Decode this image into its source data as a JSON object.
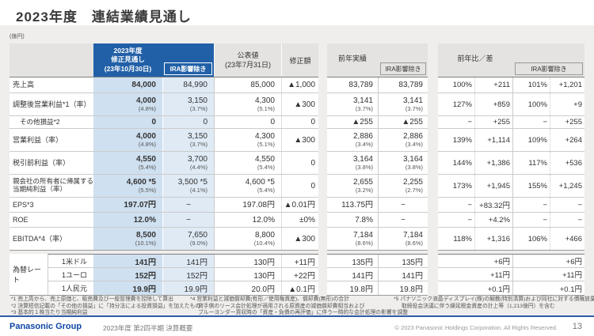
{
  "page": {
    "title": "2023年度　連結業績見通し",
    "unit_note": "(億円)"
  },
  "main": {
    "header": {
      "forecast_l1": "2023年度",
      "forecast_l2": "修正見通し",
      "forecast_l3": "(23年10月30日)",
      "ira_label": "IRA影響除き",
      "announced_l1": "公表値",
      "announced_l2": "(23年7月31日)",
      "revision": "修正額",
      "prev_label": "前年実績",
      "prev_ira_label": "IRA影響除き",
      "ratio_label": "前年比／差",
      "ratio_ira_label": "IRA影響除き"
    },
    "rows": [
      {
        "label": "売上高",
        "c1": "84,000",
        "c2": "84,990",
        "c3": "85,000",
        "c4": "▲1,000",
        "p1": "83,789",
        "p2": "83,789",
        "t1": "100%",
        "t2": "+211",
        "t3": "101%",
        "t4": "+1,201"
      },
      {
        "label": "調整後営業利益*1（率）",
        "c1": "4,000",
        "c1r": "(4.8%)",
        "c2": "3,150",
        "c2r": "(3.7%)",
        "c3": "4,300",
        "c3r": "(5.1%)",
        "c4": "▲300",
        "p1": "3,141",
        "p1r": "(3.7%)",
        "p2": "3,141",
        "p2r": "(3.7%)",
        "t1": "127%",
        "t2": "+859",
        "t3": "100%",
        "t4": "+9"
      },
      {
        "label": "その他損益*2",
        "c1": "0",
        "c2": "0",
        "c3": "0",
        "c4": "0",
        "p1": "▲255",
        "p2": "▲255",
        "t1": "−",
        "t2": "+255",
        "t3": "−",
        "t4": "+255"
      },
      {
        "label": "営業利益（率）",
        "c1": "4,000",
        "c1r": "(4.8%)",
        "c2": "3,150",
        "c2r": "(3.7%)",
        "c3": "4,300",
        "c3r": "(5.1%)",
        "c4": "▲300",
        "p1": "2,886",
        "p1r": "(3.4%)",
        "p2": "2,886",
        "p2r": "(3.4%)",
        "t1": "139%",
        "t2": "+1,114",
        "t3": "109%",
        "t4": "+264"
      },
      {
        "label": "税引前利益（率）",
        "c1": "4,550",
        "c1r": "(5.4%)",
        "c2": "3,700",
        "c2r": "(4.4%)",
        "c3": "4,550",
        "c3r": "(5.4%)",
        "c4": "0",
        "p1": "3,164",
        "p1r": "(3.8%)",
        "p2": "3,164",
        "p2r": "(3.8%)",
        "t1": "144%",
        "t2": "+1,386",
        "t3": "117%",
        "t4": "+536"
      },
      {
        "label": "親会社の所有者に帰属する",
        "label2": "当期純利益（率）",
        "c1": "4,600 *5",
        "c1r": "(5.5%)",
        "c2": "3,500 *5",
        "c2r": "(4.1%)",
        "c3": "4,600 *5",
        "c3r": "(5.4%)",
        "c4": "0",
        "p1": "2,655",
        "p1r": "(3.2%)",
        "p2": "2,255",
        "p2r": "(2.7%)",
        "t1": "173%",
        "t2": "+1,945",
        "t3": "155%",
        "t4": "+1,245"
      },
      {
        "label": "EPS*3",
        "c1": "197.07円",
        "c2": "−",
        "c3": "197.08円",
        "c4": "▲0.01円",
        "p1": "113.75円",
        "p2": "−",
        "t1": "−",
        "t2": "+83.32円",
        "t3": "−",
        "t4": "−"
      },
      {
        "label": "ROE",
        "c1": "12.0%",
        "c2": "−",
        "c3": "12.0%",
        "c4": "±0%",
        "p1": "7.8%",
        "p2": "−",
        "t1": "−",
        "t2": "+4.2%",
        "t3": "−",
        "t4": "−"
      },
      {
        "label": "EBITDA*4（率）",
        "c1": "8,500",
        "c1r": "(10.1%)",
        "c2": "7,650",
        "c2r": "(9.0%)",
        "c3": "8,800",
        "c3r": "(10.4%)",
        "c4": "▲300",
        "p1": "7,184",
        "p1r": "(8.6%)",
        "p2": "7,184",
        "p2r": "(8.6%)",
        "t1": "118%",
        "t2": "+1,316",
        "t3": "106%",
        "t4": "+466"
      }
    ]
  },
  "fx": {
    "label": "為替レート",
    "rows": [
      {
        "sub": "1米ドル",
        "c1": "141円",
        "c2": "141円",
        "c3": "130円",
        "c4": "+11円",
        "p1": "135円",
        "p2": "135円",
        "tL": "+6円",
        "tR": "+6円"
      },
      {
        "sub": "1ユーロ",
        "c1": "152円",
        "c2": "152円",
        "c3": "130円",
        "c4": "+22円",
        "p1": "141円",
        "p2": "141円",
        "tL": "+11円",
        "tR": "+11円"
      },
      {
        "sub": "1人民元",
        "c1": "19.9円",
        "c2": "19.9円",
        "c3": "20.0円",
        "c4": "▲0.1円",
        "p1": "19.8円",
        "p2": "19.8円",
        "tL": "+0.1円",
        "tR": "+0.1円"
      }
    ]
  },
  "footnotes": {
    "n1": "*1 売上高から、売上原価と、販売費及び一般管理費を控除して算出",
    "n2": "*2 決算短信記載の「その他の損益」に「持分法による投資損益」を加えたもの",
    "n3": "*3 基本的１株当たり当期純利益",
    "n4_1": "*4 営業利益と減価償却費(有形／使用権資産)、償却費(無形)の合計",
    "n4_2": "貸手側のリース会計処理が適用される原資産の減価償却費相当および",
    "n4_3": "ブルーヨンダー買収時の「資産・負債の再評価」に伴う一時的な会計処理の影響を調整",
    "n5_1": "*5 パナソニック液晶ディスプレイ(株)の解散(特別清算)および同社に対する債権放棄の",
    "n5_2": "取締役会決議に伴う繰延税金資産の計上等（1,213億円）を含む"
  },
  "footer": {
    "logo": "Panasonic Group",
    "doc_title": "2023年度 第2四半期 決算概要",
    "copyright": "© 2023 Panasonic Holdings Corporation. All Rights Reserved.",
    "page_number": "13"
  }
}
